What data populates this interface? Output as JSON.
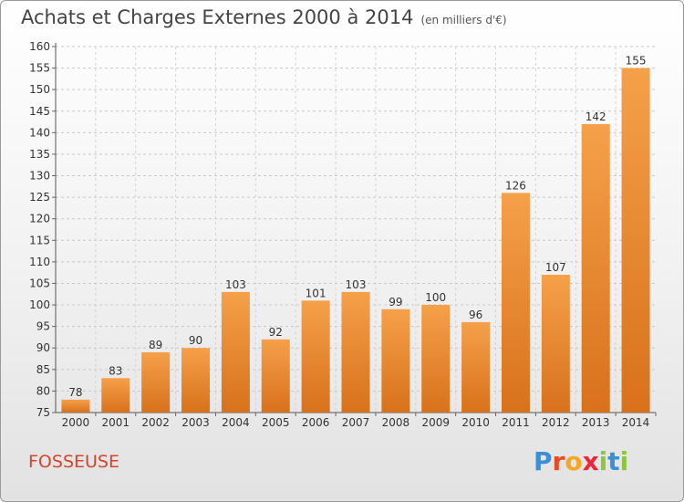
{
  "header": {
    "title": "Achats et Charges Externes 2000 à 2014",
    "subtitle": "(en milliers d'€)"
  },
  "footer": {
    "commune": "FOSSEUSE",
    "logo_text": "Proxiti"
  },
  "colors": {
    "bar_light": "#f5a04a",
    "bar_dark": "#d8711b",
    "commune_text": "#d2452d",
    "logo_letters": [
      "#3b8fd4",
      "#e84c1e",
      "#f5a623",
      "#e8283c",
      "#8cc63f",
      "#3b8fd4",
      "#8cc63f"
    ]
  },
  "chart_data": {
    "type": "bar",
    "title": "Achats et Charges Externes 2000 à 2014",
    "subtitle": "(en milliers d'€)",
    "categories": [
      "2000",
      "2001",
      "2002",
      "2003",
      "2004",
      "2005",
      "2006",
      "2007",
      "2008",
      "2009",
      "2010",
      "2011",
      "2012",
      "2013",
      "2014"
    ],
    "values": [
      78,
      83,
      89,
      90,
      103,
      92,
      101,
      103,
      99,
      100,
      96,
      126,
      107,
      142,
      155
    ],
    "ylim": [
      75,
      160
    ],
    "yticks": [
      75,
      80,
      85,
      90,
      95,
      100,
      105,
      110,
      115,
      120,
      125,
      130,
      135,
      140,
      145,
      150,
      155,
      160
    ],
    "grid": "horizontal dashed",
    "xlabel": "",
    "ylabel": ""
  }
}
